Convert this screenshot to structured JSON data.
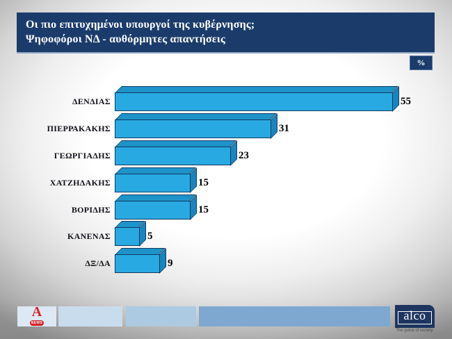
{
  "title": {
    "line1": "Οι πιο επιτυχημένοι υπουργοί της κυβέρνησης;",
    "line2": "Ψηφοφόροι ΝΔ - αυθόρμητες απαντήσεις"
  },
  "percent_badge": "%",
  "chart_data": {
    "type": "bar",
    "orientation": "horizontal",
    "style": "3d-cuboid",
    "categories": [
      "ΔΕΝΔΙΑΣ",
      "ΠΙΕΡΡΑΚΑΚΗΣ",
      "ΓΕΩΡΓΙΑΔΗΣ",
      "ΧΑΤΖΗΔΑΚΗΣ",
      "ΒΟΡΙΔΗΣ",
      "ΚΑΝΕΝΑΣ",
      "ΔΞ/ΔΑ"
    ],
    "values": [
      55,
      31,
      23,
      15,
      15,
      5,
      9
    ],
    "unit": "%",
    "xlim": [
      0,
      60
    ],
    "data_labels": true,
    "grid": false,
    "legend": false,
    "bar_color": "#29a9e2",
    "bar_top_color": "#1e93c9",
    "bar_side_color": "#1a85bc",
    "bar_outline_color": "#0e3a5f"
  },
  "footer": {
    "band_colors": [
      "#dce9f4",
      "#c9dcee",
      "#adcae3",
      "#7ea8d0"
    ],
    "alpha_news_logo": {
      "letter": "A",
      "badge": "NEWS",
      "color": "#d6212a"
    },
    "alco_logo": {
      "wordmark": "alco",
      "tagline": "The pulse of society",
      "color": "#1e3560"
    }
  },
  "colors": {
    "title_bar": "#1b3c6b",
    "title_text": "#ffffff",
    "value_label": "#000000",
    "category_label": "#101018"
  }
}
